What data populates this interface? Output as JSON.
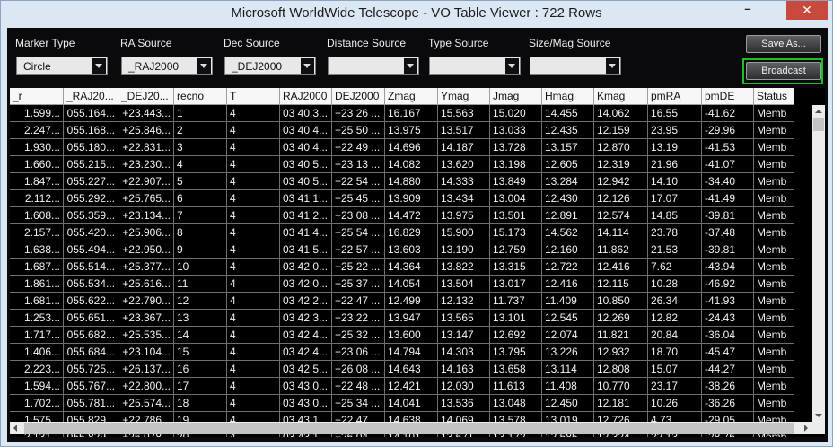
{
  "window": {
    "title": "Microsoft WorldWide Telescope - VO Table Viewer : 722 Rows",
    "minimize_glyph": "–",
    "close_glyph": "✕"
  },
  "controls": {
    "marker_type": {
      "label": "Marker Type",
      "value": "Circle"
    },
    "ra_source": {
      "label": "RA Source",
      "value": "_RAJ2000"
    },
    "dec_source": {
      "label": "Dec Source",
      "value": "_DEJ2000"
    },
    "distance_source": {
      "label": "Distance Source",
      "value": ""
    },
    "type_source": {
      "label": "Type Source",
      "value": ""
    },
    "size_mag_source": {
      "label": "Size/Mag Source",
      "value": ""
    }
  },
  "buttons": {
    "save_as": "Save As...",
    "broadcast": "Broadcast"
  },
  "colors": {
    "broadcast_highlight": "#1fbf1f",
    "panel_bg": "#0a0a0d",
    "close_button": "#c74a3c"
  },
  "table": {
    "columns": [
      "_r",
      "_RAJ20...",
      "_DEJ20...",
      "recno",
      "T",
      "RAJ2000",
      "DEJ2000",
      "Zmag",
      "Ymag",
      "Jmag",
      "Hmag",
      "Kmag",
      "pmRA",
      "pmDE",
      "Status"
    ],
    "rows": [
      [
        "1.599...",
        "055.164...",
        "+23.443...",
        "1",
        "4",
        "03 40 3...",
        "+23 26 ...",
        "16.167",
        "15.563",
        "15.020",
        "14.455",
        "14.062",
        "16.55",
        "-41.62",
        "Memb"
      ],
      [
        "2.247...",
        "055.168...",
        "+25.846...",
        "2",
        "4",
        "03 40 4...",
        "+25 50 ...",
        "13.975",
        "13.517",
        "13.033",
        "12.435",
        "12.159",
        "23.95",
        "-29.96",
        "Memb"
      ],
      [
        "1.930...",
        "055.180...",
        "+22.831...",
        "3",
        "4",
        "03 40 4...",
        "+22 49 ...",
        "14.696",
        "14.187",
        "13.728",
        "13.157",
        "12.870",
        "13.19",
        "-41.53",
        "Memb"
      ],
      [
        "1.660...",
        "055.215...",
        "+23.230...",
        "4",
        "4",
        "03 40 5...",
        "+23 13 ...",
        "14.082",
        "13.620",
        "13.198",
        "12.605",
        "12.319",
        "21.96",
        "-41.07",
        "Memb"
      ],
      [
        "1.847...",
        "055.227...",
        "+22.907...",
        "5",
        "4",
        "03 40 5...",
        "+22 54 ...",
        "14.880",
        "14.333",
        "13.849",
        "13.284",
        "12.942",
        "14.10",
        "-34.40",
        "Memb"
      ],
      [
        "2.112...",
        "055.292...",
        "+25.765...",
        "6",
        "4",
        "03 41 1...",
        "+25 45 ...",
        "13.909",
        "13.434",
        "13.004",
        "12.430",
        "12.126",
        "17.07",
        "-41.49",
        "Memb"
      ],
      [
        "1.608...",
        "055.359...",
        "+23.134...",
        "7",
        "4",
        "03 41 2...",
        "+23 08 ...",
        "14.472",
        "13.975",
        "13.501",
        "12.891",
        "12.574",
        "14.85",
        "-39.81",
        "Memb"
      ],
      [
        "2.157...",
        "055.420...",
        "+25.906...",
        "8",
        "4",
        "03 41 4...",
        "+25 54 ...",
        "16.829",
        "15.900",
        "15.173",
        "14.562",
        "14.114",
        "23.78",
        "-37.48",
        "Memb"
      ],
      [
        "1.638...",
        "055.494...",
        "+22.950...",
        "9",
        "4",
        "03 41 5...",
        "+22 57 ...",
        "13.603",
        "13.190",
        "12.759",
        "12.160",
        "11.862",
        "21.53",
        "-39.81",
        "Memb"
      ],
      [
        "1.687...",
        "055.514...",
        "+25.377...",
        "10",
        "4",
        "03 42 0...",
        "+25 22 ...",
        "14.364",
        "13.822",
        "13.315",
        "12.722",
        "12.416",
        "7.62",
        "-43.94",
        "Memb"
      ],
      [
        "1.861...",
        "055.534...",
        "+25.616...",
        "11",
        "4",
        "03 42 0...",
        "+25 37 ...",
        "14.054",
        "13.504",
        "13.017",
        "12.416",
        "12.115",
        "10.28",
        "-46.92",
        "Memb"
      ],
      [
        "1.681...",
        "055.622...",
        "+22.790...",
        "12",
        "4",
        "03 42 2...",
        "+22 47 ...",
        "12.499",
        "12.132",
        "11.737",
        "11.409",
        "10.850",
        "26.34",
        "-41.93",
        "Memb"
      ],
      [
        "1.253...",
        "055.651...",
        "+23.367...",
        "13",
        "4",
        "03 42 3...",
        "+23 22 ...",
        "13.947",
        "13.565",
        "13.101",
        "12.545",
        "12.269",
        "12.82",
        "-24.43",
        "Memb"
      ],
      [
        "1.717...",
        "055.682...",
        "+25.535...",
        "14",
        "4",
        "03 42 4...",
        "+25 32 ...",
        "13.600",
        "13.147",
        "12.692",
        "12.074",
        "11.821",
        "20.84",
        "-36.04",
        "Memb"
      ],
      [
        "1.406...",
        "055.684...",
        "+23.104...",
        "15",
        "4",
        "03 42 4...",
        "+23 06 ...",
        "14.794",
        "14.303",
        "13.795",
        "13.226",
        "12.932",
        "18.70",
        "-45.47",
        "Memb"
      ],
      [
        "2.223...",
        "055.725...",
        "+26.137...",
        "16",
        "4",
        "03 42 5...",
        "+26 08 ...",
        "14.643",
        "14.163",
        "13.658",
        "13.114",
        "12.808",
        "15.07",
        "-44.27",
        "Memb"
      ],
      [
        "1.594...",
        "055.767...",
        "+22.800...",
        "17",
        "4",
        "03 43 0...",
        "+22 48 ...",
        "12.421",
        "12.030",
        "11.613",
        "11.408",
        "10.770",
        "23.17",
        "-38.26",
        "Memb"
      ],
      [
        "1.702...",
        "055.781...",
        "+25.574...",
        "18",
        "4",
        "03 43 0...",
        "+25 34 ...",
        "14.041",
        "13.536",
        "13.048",
        "12.450",
        "12.181",
        "10.26",
        "-36.26",
        "Memb"
      ],
      [
        "1.575...",
        "055.829...",
        "+22.786...",
        "19",
        "4",
        "03 43 1...",
        "+22 47 ...",
        "14.638",
        "14.069",
        "13.578",
        "13.019",
        "12.726",
        "4.73",
        "-29.05",
        "Memb"
      ],
      [
        "2.131...",
        "055.829...",
        "+26.078...",
        "20",
        "4",
        "03 43 1...",
        "+26 04 ...",
        "14.101",
        "13.671",
        "13.172",
        "12.585",
        "12.324",
        "22.13",
        "-28.76",
        "Memb"
      ],
      [
        "1.471...",
        "055.854...",
        "+22.895...",
        "21",
        "4",
        "03 43 2...",
        "+22 53 ...",
        "14.830",
        "14.271",
        "13.753",
        "13.181",
        "12.842",
        "19.03",
        "-32.89",
        "Memb"
      ]
    ]
  }
}
